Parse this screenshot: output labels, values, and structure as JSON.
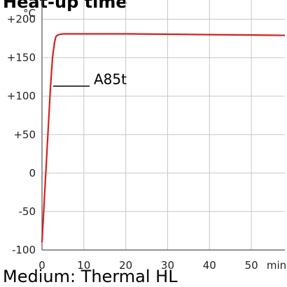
{
  "title": "Heat-up time",
  "subtitle": "Medium: Thermal HL",
  "chart_data": {
    "type": "line",
    "y_unit": "°C",
    "x_unit": "min",
    "xlim": [
      0,
      58
    ],
    "ylim": [
      -100,
      225
    ],
    "x_ticks": [
      0,
      10,
      20,
      30,
      40,
      50
    ],
    "y_ticks": [
      200,
      150,
      100,
      50,
      0,
      -50,
      -100
    ],
    "x_tick_labels": [
      "0",
      "10",
      "20",
      "30",
      "40",
      "50"
    ],
    "y_tick_labels": [
      "+200",
      "+150",
      "+100",
      "+50",
      "0",
      "-50",
      "-100"
    ],
    "grid": true,
    "series": [
      {
        "name": "A85t",
        "color": "#d42020",
        "x": [
          0,
          0.5,
          1,
          1.5,
          2,
          2.5,
          3,
          3.3,
          3.6,
          4,
          5,
          10,
          20,
          30,
          40,
          50,
          58
        ],
        "y": [
          -90,
          -40,
          10,
          60,
          110,
          150,
          170,
          177,
          179,
          180,
          181,
          181,
          181,
          180.5,
          180,
          179.5,
          179
        ]
      }
    ]
  }
}
